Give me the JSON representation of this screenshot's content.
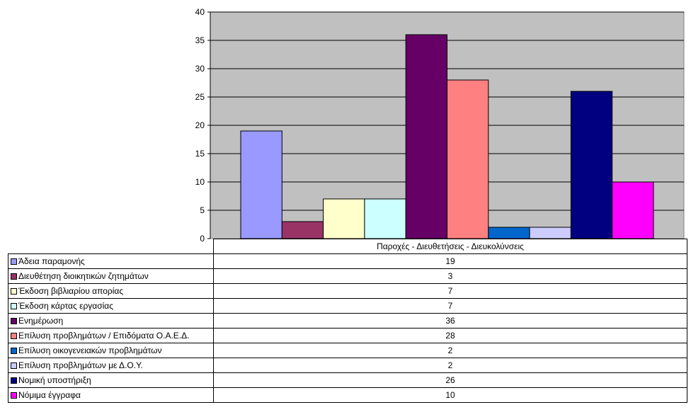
{
  "chart_data": {
    "type": "bar",
    "categories": [
      "Παροχές - Διευθετήσεις - Διευκολύνσεις"
    ],
    "xlabel": "",
    "ylabel": "",
    "ylim": [
      0,
      40
    ],
    "yticks": [
      0,
      5,
      10,
      15,
      20,
      25,
      30,
      35,
      40
    ],
    "grid": true,
    "plot_background": "#C0C0C0",
    "legend_placement": "data-table",
    "series": [
      {
        "name": "Άδεια παραμονής",
        "values": [
          19
        ],
        "color": "#9999FF"
      },
      {
        "name": "Διευθέτηση διοικητικών ζητημάτων",
        "values": [
          3
        ],
        "color": "#993366"
      },
      {
        "name": "Έκδοση βιβλιαρίου απορίας",
        "values": [
          7
        ],
        "color": "#FFFFCC"
      },
      {
        "name": "Έκδοση κάρτας εργασίας",
        "values": [
          7
        ],
        "color": "#CCFFFF"
      },
      {
        "name": "Ενημέρωση",
        "values": [
          36
        ],
        "color": "#660066"
      },
      {
        "name": "Επίλυση προβλημάτων / Επιδόματα Ο.Α.Ε.Δ.",
        "values": [
          28
        ],
        "color": "#FF8080"
      },
      {
        "name": "Επίλυση οικογενειακών προβλημάτων",
        "values": [
          2
        ],
        "color": "#0066CC"
      },
      {
        "name": "Επίλυση προβλημάτων με Δ.Ο.Υ.",
        "values": [
          2
        ],
        "color": "#CCCCFF"
      },
      {
        "name": "Νομική υποστήριξη",
        "values": [
          26
        ],
        "color": "#000080"
      },
      {
        "name": "Νόμιμα έγγραφα",
        "values": [
          10
        ],
        "color": "#FF00FF"
      }
    ]
  }
}
